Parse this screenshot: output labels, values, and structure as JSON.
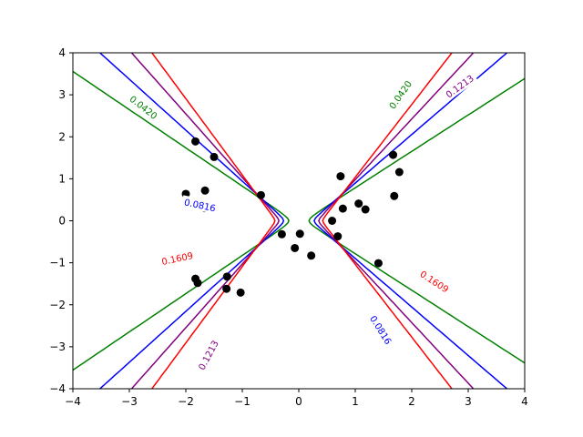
{
  "chart_data": {
    "type": "contour",
    "title": "",
    "xlabel": "",
    "ylabel": "",
    "xlim": [
      -4,
      4
    ],
    "ylim": [
      -4,
      4
    ],
    "grid": false,
    "x_ticks": [
      "−4",
      "−3",
      "−2",
      "−1",
      "0",
      "1",
      "2",
      "3",
      "4"
    ],
    "y_ticks": [
      "−4",
      "−3",
      "−2",
      "−1",
      "0",
      "1",
      "2",
      "3",
      "4"
    ],
    "tick_values": [
      -4,
      -3,
      -2,
      -1,
      0,
      1,
      2,
      3,
      4
    ],
    "contour_levels": [
      {
        "label": "0.0420",
        "value": 0.042,
        "color": "#008000",
        "a": 0.088,
        "s": 2.0
      },
      {
        "label": "0.0816",
        "value": 0.0816,
        "color": "#0000ff",
        "a": 0.22,
        "s": 1.5
      },
      {
        "label": "0.1213",
        "value": 0.1213,
        "color": "#800080",
        "a": 0.32,
        "s": 1.2
      },
      {
        "label": "0.1609",
        "value": 0.1609,
        "color": "#ff0000",
        "a": 0.4,
        "s": 1.0
      }
    ],
    "inline_labels": [
      {
        "text": "0.0420",
        "color": "#008000",
        "x": -2.75,
        "y": 2.7,
        "angle": 38
      },
      {
        "text": "0.0420",
        "color": "#008000",
        "x": 1.8,
        "y": 3.0,
        "angle": -55
      },
      {
        "text": "0.0816",
        "color": "#0000ff",
        "x": -1.75,
        "y": 0.37,
        "angle": 12
      },
      {
        "text": "0.0816",
        "color": "#0000ff",
        "x": 1.45,
        "y": -2.6,
        "angle": 58
      },
      {
        "text": "0.1213",
        "color": "#800080",
        "x": 2.85,
        "y": 3.2,
        "angle": -36
      },
      {
        "text": "0.1213",
        "color": "#800080",
        "x": -1.6,
        "y": -3.2,
        "angle": -62
      },
      {
        "text": "0.1609",
        "color": "#ff0000",
        "x": -2.15,
        "y": -0.9,
        "angle": -12
      },
      {
        "text": "0.1609",
        "color": "#ff0000",
        "x": 2.4,
        "y": -1.45,
        "angle": 33
      }
    ],
    "points": [
      [
        -1.83,
        1.89
      ],
      [
        -1.5,
        1.52
      ],
      [
        -1.66,
        0.72
      ],
      [
        -1.66,
        0.3
      ],
      [
        -2.0,
        0.64
      ],
      [
        -0.67,
        0.61
      ],
      [
        -0.3,
        -0.32
      ],
      [
        -0.07,
        -0.65
      ],
      [
        0.02,
        -0.31
      ],
      [
        0.22,
        -0.83
      ],
      [
        -1.83,
        -1.38
      ],
      [
        -1.79,
        -1.48
      ],
      [
        -1.27,
        -1.33
      ],
      [
        -1.28,
        -1.62
      ],
      [
        -1.03,
        -1.71
      ],
      [
        0.74,
        1.06
      ],
      [
        0.78,
        0.29
      ],
      [
        0.59,
        0.0
      ],
      [
        0.69,
        -0.37
      ],
      [
        1.06,
        0.41
      ],
      [
        1.18,
        0.27
      ],
      [
        1.41,
        -1.01
      ],
      [
        1.67,
        1.57
      ],
      [
        1.69,
        0.59
      ],
      [
        1.78,
        1.16
      ]
    ],
    "point_color": "#000000"
  }
}
